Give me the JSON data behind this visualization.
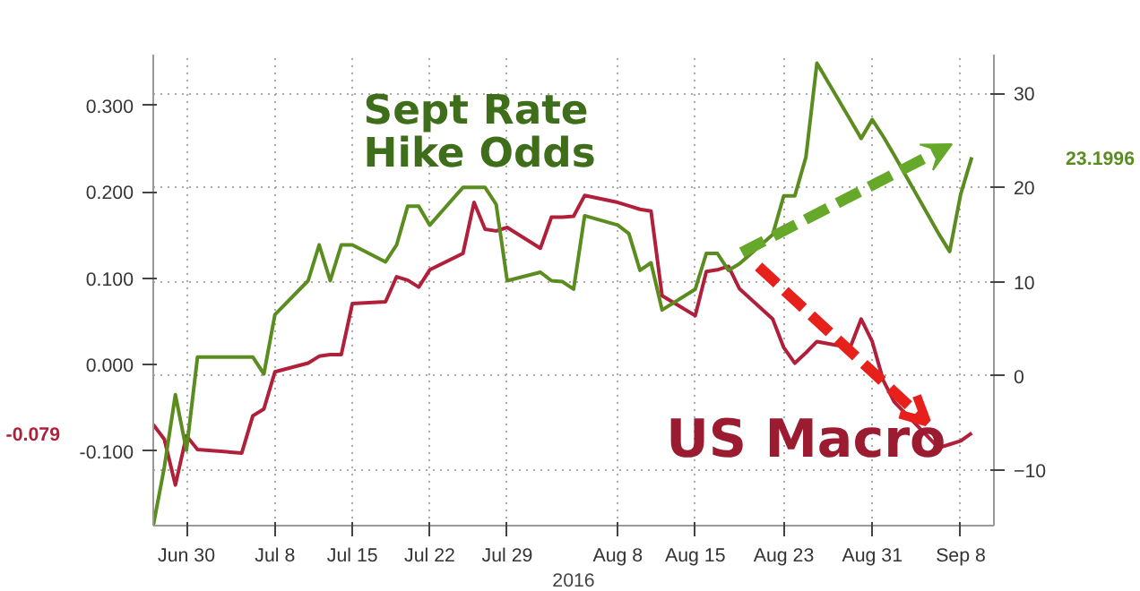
{
  "chart_data": {
    "type": "line",
    "xlabel": "2016",
    "x": [
      "2016-06-27",
      "2016-06-28",
      "2016-06-29",
      "2016-06-30",
      "2016-07-01",
      "2016-07-05",
      "2016-07-06",
      "2016-07-07",
      "2016-07-08",
      "2016-07-11",
      "2016-07-12",
      "2016-07-13",
      "2016-07-14",
      "2016-07-15",
      "2016-07-18",
      "2016-07-19",
      "2016-07-20",
      "2016-07-21",
      "2016-07-22",
      "2016-07-25",
      "2016-07-26",
      "2016-07-27",
      "2016-07-28",
      "2016-07-29",
      "2016-08-01",
      "2016-08-02",
      "2016-08-03",
      "2016-08-04",
      "2016-08-05",
      "2016-08-08",
      "2016-08-09",
      "2016-08-10",
      "2016-08-11",
      "2016-08-12",
      "2016-08-15",
      "2016-08-16",
      "2016-08-17",
      "2016-08-18",
      "2016-08-19",
      "2016-08-22",
      "2016-08-23",
      "2016-08-24",
      "2016-08-25",
      "2016-08-26",
      "2016-08-29",
      "2016-08-30",
      "2016-08-31",
      "2016-09-01",
      "2016-09-02",
      "2016-09-06",
      "2016-09-07",
      "2016-09-08",
      "2016-09-09"
    ],
    "series": [
      {
        "name": "US Macro",
        "color": "#b0203a",
        "axis": "y",
        "values": [
          -0.069,
          -0.086,
          -0.139,
          -0.082,
          -0.098,
          -0.102,
          -0.059,
          -0.051,
          -0.008,
          0.002,
          0.01,
          0.012,
          0.012,
          0.071,
          0.073,
          0.102,
          0.098,
          0.09,
          0.11,
          0.129,
          0.188,
          0.157,
          0.155,
          0.159,
          0.135,
          0.171,
          0.171,
          0.172,
          0.196,
          0.188,
          0.184,
          0.18,
          0.178,
          0.08,
          0.057,
          0.108,
          0.11,
          0.114,
          0.088,
          0.053,
          0.02,
          0.002,
          0.014,
          0.027,
          0.02,
          0.053,
          0.027,
          -0.018,
          -0.043,
          -0.096,
          -0.092,
          -0.088,
          -0.079
        ],
        "value_labels": [
          null,
          null,
          null,
          null,
          null,
          null,
          null,
          null,
          null,
          null,
          null,
          null,
          null,
          null,
          null,
          null,
          null,
          null,
          null,
          null,
          null,
          null,
          null,
          null,
          null,
          null,
          null,
          null,
          null,
          null,
          null,
          null,
          null,
          null,
          null,
          null,
          null,
          null,
          null,
          null,
          null,
          null,
          null,
          null,
          null,
          null,
          null,
          null,
          null,
          null,
          null,
          null,
          null
        ]
      },
      {
        "name": "Sept Rate Hike Odds",
        "color": "#5b8c1f",
        "axis": "y2",
        "values": [
          -15.9,
          -9.7,
          -2.0,
          -7.9,
          2.0,
          2.0,
          2.0,
          0.2,
          6.5,
          10.1,
          13.9,
          10.1,
          13.9,
          13.9,
          12.1,
          13.9,
          18.0,
          18.0,
          16.0,
          20.0,
          20.0,
          20.0,
          18.2,
          10.1,
          11.0,
          10.1,
          10.0,
          9.2,
          17.0,
          16.0,
          15.1,
          11.2,
          12.0,
          7.0,
          9.2,
          13.0,
          13.0,
          11.2,
          11.9,
          15.0,
          19.1,
          19.1,
          23.2,
          33.2,
          27.2,
          25.2,
          27.2,
          25.4,
          23.4,
          15.1,
          13.2,
          19.3,
          23.1996
        ],
        "value_labels": [
          null,
          null,
          null,
          null,
          null,
          null,
          null,
          null,
          null,
          null,
          null,
          null,
          null,
          null,
          null,
          null,
          null,
          null,
          null,
          null,
          null,
          null,
          null,
          null,
          null,
          null,
          null,
          null,
          null,
          null,
          null,
          null,
          null,
          null,
          null,
          null,
          null,
          null,
          null,
          null,
          null,
          null,
          null,
          null,
          null,
          null,
          null,
          null,
          null,
          null,
          null,
          null,
          null
        ]
      }
    ],
    "xlim": [
      "2016-06-27",
      "2016-09-11"
    ],
    "xticks": [
      {
        "value": "2016-06-30",
        "label": "Jun 30"
      },
      {
        "value": "2016-07-08",
        "label": "Jul 8"
      },
      {
        "value": "2016-07-15",
        "label": "Jul 15"
      },
      {
        "value": "2016-07-22",
        "label": "Jul 22"
      },
      {
        "value": "2016-07-29",
        "label": "Jul 29"
      },
      {
        "value": "2016-08-08",
        "label": "Aug 8"
      },
      {
        "value": "2016-08-15",
        "label": "Aug 15"
      },
      {
        "value": "2016-08-23",
        "label": "Aug 23"
      },
      {
        "value": "2016-08-31",
        "label": "Aug 31"
      },
      {
        "value": "2016-09-08",
        "label": "Sep 8"
      }
    ],
    "ylim": [
      -0.186,
      0.359
    ],
    "yticks": [
      {
        "value": -0.1,
        "label": "-0.100"
      },
      {
        "value": 0,
        "label": "0.000"
      },
      {
        "value": 0.1,
        "label": "0.100"
      },
      {
        "value": 0.2,
        "label": "0.200"
      },
      {
        "value": 0.3,
        "label": "0.300"
      }
    ],
    "y2lim": [
      -15.9,
      34.1
    ],
    "y2ticks": [
      -10,
      0,
      10,
      20,
      30
    ],
    "annotations": [
      "-0.079",
      "23.1996"
    ],
    "grid": true,
    "legend": false,
    "line_style": "solid",
    "marker": "none"
  }
}
